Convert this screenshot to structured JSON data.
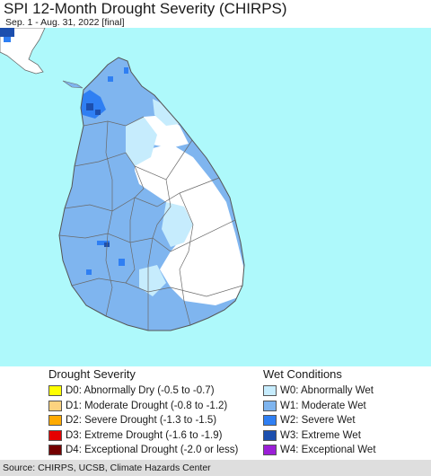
{
  "title": "SPI 12-Month Drought Severity (CHIRPS)",
  "subtitle": "Sep. 1 - Aug. 31, 2022 [final]",
  "colors": {
    "ocean": "#aef9fb",
    "land_neutral": "#ffffff",
    "india": "#ffffff",
    "w0": "#c6ecfd",
    "w1": "#7fb5ef",
    "w2": "#2f7ff3",
    "w3": "#1c4fae",
    "w4": "#9b1fd7",
    "border": "#6a6a6a"
  },
  "map": {
    "region_shown": "Sri Lanka",
    "dominant_condition": "W1: Moderate Wet",
    "driest_area_condition": "none (no drought classes present)"
  },
  "legend_drought": {
    "title": "Drought Severity",
    "items": [
      {
        "label": "D0: Abnormally Dry (-0.5 to -0.7)",
        "color": "#ffff00"
      },
      {
        "label": "D1: Moderate Drought (-0.8 to -1.2)",
        "color": "#fcd37f"
      },
      {
        "label": "D2: Severe Drought (-1.3 to -1.5)",
        "color": "#ffaa00"
      },
      {
        "label": "D3: Extreme Drought (-1.6 to -1.9)",
        "color": "#e60000"
      },
      {
        "label": "D4: Exceptional Drought (-2.0 or less)",
        "color": "#730000"
      }
    ]
  },
  "legend_wet": {
    "title": "Wet Conditions",
    "items": [
      {
        "label": "W0: Abnormally Wet",
        "color": "#c6ecfd"
      },
      {
        "label": "W1: Moderate Wet",
        "color": "#7fb5ef"
      },
      {
        "label": "W2: Severe Wet",
        "color": "#2f7ff3"
      },
      {
        "label": "W3: Extreme Wet",
        "color": "#1c4fae"
      },
      {
        "label": "W4: Exceptional Wet",
        "color": "#9b1fd7"
      }
    ]
  },
  "footer": "Source: CHIRPS, UCSB, Climate Hazards Center"
}
